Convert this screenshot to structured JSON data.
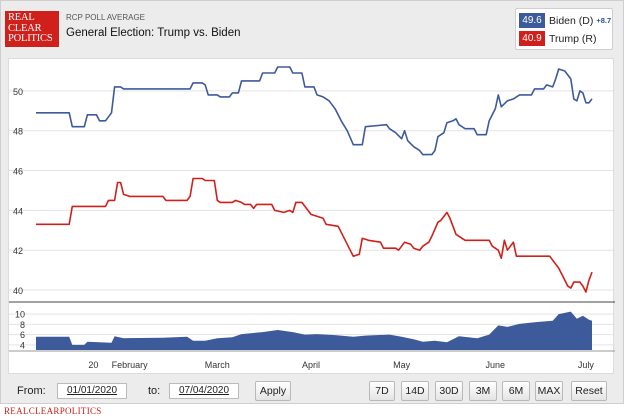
{
  "brand": {
    "logo_lines": [
      "REAL",
      "CLEAR",
      "POLITICS"
    ],
    "footer": "REALCLEARPOLITICS"
  },
  "header": {
    "kicker": "RCP POLL AVERAGE",
    "title": "General Election: Trump vs. Biden"
  },
  "legend": {
    "items": [
      {
        "value": "49.6",
        "label": "Biden (D)",
        "spread": "+8.7",
        "color": "#3d5a9b"
      },
      {
        "value": "40.9",
        "label": "Trump (R)",
        "color": "#d0201b"
      }
    ]
  },
  "chart_data": [
    {
      "type": "line",
      "title": "",
      "xlabel": "",
      "ylabel": "",
      "x_domain": [
        "2020-01-01",
        "2020-07-04"
      ],
      "ylim": [
        39.5,
        51.3
      ],
      "yticks": [
        40,
        42,
        44,
        46,
        48,
        50
      ],
      "xticks": [
        {
          "date": "2020-01-20",
          "label": "20"
        },
        {
          "date": "2020-02-01",
          "label": "February"
        },
        {
          "date": "2020-03-01",
          "label": "March"
        },
        {
          "date": "2020-04-01",
          "label": "April"
        },
        {
          "date": "2020-05-01",
          "label": "May"
        },
        {
          "date": "2020-06-01",
          "label": "June"
        },
        {
          "date": "2020-07-01",
          "label": "July"
        }
      ],
      "grid": "horizontal",
      "series": [
        {
          "name": "Biden (D)",
          "color": "#3d5a9b",
          "points": [
            [
              "2020-01-01",
              48.9
            ],
            [
              "2020-01-12",
              48.9
            ],
            [
              "2020-01-13",
              48.2
            ],
            [
              "2020-01-17",
              48.2
            ],
            [
              "2020-01-18",
              48.8
            ],
            [
              "2020-01-21",
              48.8
            ],
            [
              "2020-01-22",
              48.5
            ],
            [
              "2020-01-24",
              48.5
            ],
            [
              "2020-01-26",
              48.9
            ],
            [
              "2020-01-27",
              50.2
            ],
            [
              "2020-01-29",
              50.2
            ],
            [
              "2020-01-30",
              50.1
            ],
            [
              "2020-02-21",
              50.1
            ],
            [
              "2020-02-22",
              50.4
            ],
            [
              "2020-02-25",
              50.4
            ],
            [
              "2020-02-26",
              50.3
            ],
            [
              "2020-02-27",
              49.8
            ],
            [
              "2020-03-01",
              49.8
            ],
            [
              "2020-03-02",
              49.7
            ],
            [
              "2020-03-05",
              49.7
            ],
            [
              "2020-03-06",
              49.9
            ],
            [
              "2020-03-08",
              49.9
            ],
            [
              "2020-03-09",
              50.5
            ],
            [
              "2020-03-15",
              50.5
            ],
            [
              "2020-03-16",
              50.9
            ],
            [
              "2020-03-20",
              50.9
            ],
            [
              "2020-03-21",
              51.2
            ],
            [
              "2020-03-25",
              51.2
            ],
            [
              "2020-03-26",
              50.9
            ],
            [
              "2020-03-29",
              50.9
            ],
            [
              "2020-03-30",
              50.2
            ],
            [
              "2020-04-02",
              50.2
            ],
            [
              "2020-04-03",
              49.8
            ],
            [
              "2020-04-05",
              49.7
            ],
            [
              "2020-04-07",
              49.5
            ],
            [
              "2020-04-09",
              49.1
            ],
            [
              "2020-04-11",
              48.5
            ],
            [
              "2020-04-13",
              48.0
            ],
            [
              "2020-04-15",
              47.3
            ],
            [
              "2020-04-18",
              47.3
            ],
            [
              "2020-04-19",
              48.2
            ],
            [
              "2020-04-26",
              48.3
            ],
            [
              "2020-04-27",
              48.1
            ],
            [
              "2020-04-29",
              47.9
            ],
            [
              "2020-05-01",
              47.6
            ],
            [
              "2020-05-02",
              48.0
            ],
            [
              "2020-05-03",
              47.5
            ],
            [
              "2020-05-05",
              47.2
            ],
            [
              "2020-05-07",
              47.0
            ],
            [
              "2020-05-08",
              46.8
            ],
            [
              "2020-05-11",
              46.8
            ],
            [
              "2020-05-12",
              47.0
            ],
            [
              "2020-05-13",
              47.7
            ],
            [
              "2020-05-15",
              47.9
            ],
            [
              "2020-05-16",
              48.4
            ],
            [
              "2020-05-18",
              48.5
            ],
            [
              "2020-05-19",
              48.6
            ],
            [
              "2020-05-20",
              48.3
            ],
            [
              "2020-05-22",
              48.1
            ],
            [
              "2020-05-25",
              48.1
            ],
            [
              "2020-05-26",
              47.8
            ],
            [
              "2020-05-29",
              47.8
            ],
            [
              "2020-05-30",
              48.5
            ],
            [
              "2020-06-01",
              49.1
            ],
            [
              "2020-06-02",
              49.8
            ],
            [
              "2020-06-03",
              49.2
            ],
            [
              "2020-06-05",
              49.5
            ],
            [
              "2020-06-07",
              49.6
            ],
            [
              "2020-06-09",
              49.8
            ],
            [
              "2020-06-13",
              49.8
            ],
            [
              "2020-06-14",
              50.1
            ],
            [
              "2020-06-17",
              50.1
            ],
            [
              "2020-06-18",
              50.3
            ],
            [
              "2020-06-20",
              50.2
            ],
            [
              "2020-06-21",
              50.6
            ],
            [
              "2020-06-22",
              51.1
            ],
            [
              "2020-06-24",
              51.0
            ],
            [
              "2020-06-26",
              50.6
            ],
            [
              "2020-06-27",
              49.6
            ],
            [
              "2020-06-28",
              49.5
            ],
            [
              "2020-06-29",
              50.0
            ],
            [
              "2020-06-30",
              49.9
            ],
            [
              "2020-07-01",
              49.4
            ],
            [
              "2020-07-02",
              49.4
            ],
            [
              "2020-07-03",
              49.6
            ]
          ]
        },
        {
          "name": "Trump (R)",
          "color": "#d0201b",
          "points": [
            [
              "2020-01-01",
              43.3
            ],
            [
              "2020-01-12",
              43.3
            ],
            [
              "2020-01-13",
              44.2
            ],
            [
              "2020-01-24",
              44.2
            ],
            [
              "2020-01-25",
              44.5
            ],
            [
              "2020-01-27",
              44.5
            ],
            [
              "2020-01-28",
              45.4
            ],
            [
              "2020-01-29",
              45.4
            ],
            [
              "2020-01-30",
              44.8
            ],
            [
              "2020-02-01",
              44.7
            ],
            [
              "2020-02-12",
              44.7
            ],
            [
              "2020-02-13",
              44.5
            ],
            [
              "2020-02-20",
              44.5
            ],
            [
              "2020-02-21",
              44.7
            ],
            [
              "2020-02-22",
              45.6
            ],
            [
              "2020-02-25",
              45.6
            ],
            [
              "2020-02-26",
              45.5
            ],
            [
              "2020-02-29",
              45.5
            ],
            [
              "2020-03-01",
              44.5
            ],
            [
              "2020-03-02",
              44.4
            ],
            [
              "2020-03-06",
              44.4
            ],
            [
              "2020-03-07",
              44.5
            ],
            [
              "2020-03-09",
              44.4
            ],
            [
              "2020-03-10",
              44.3
            ],
            [
              "2020-03-12",
              44.3
            ],
            [
              "2020-03-13",
              44.1
            ],
            [
              "2020-03-14",
              44.3
            ],
            [
              "2020-03-19",
              44.3
            ],
            [
              "2020-03-20",
              44.0
            ],
            [
              "2020-03-23",
              43.9
            ],
            [
              "2020-03-25",
              44.0
            ],
            [
              "2020-03-26",
              43.9
            ],
            [
              "2020-03-27",
              44.4
            ],
            [
              "2020-03-29",
              44.4
            ],
            [
              "2020-03-30",
              44.2
            ],
            [
              "2020-04-01",
              43.8
            ],
            [
              "2020-04-05",
              43.6
            ],
            [
              "2020-04-06",
              43.3
            ],
            [
              "2020-04-10",
              43.2
            ],
            [
              "2020-04-11",
              42.9
            ],
            [
              "2020-04-13",
              42.3
            ],
            [
              "2020-04-14",
              42.0
            ],
            [
              "2020-04-15",
              41.7
            ],
            [
              "2020-04-17",
              41.8
            ],
            [
              "2020-04-18",
              42.6
            ],
            [
              "2020-04-20",
              42.5
            ],
            [
              "2020-04-24",
              42.4
            ],
            [
              "2020-04-25",
              42.1
            ],
            [
              "2020-04-29",
              42.1
            ],
            [
              "2020-04-30",
              42.0
            ],
            [
              "2020-05-02",
              42.4
            ],
            [
              "2020-05-04",
              42.3
            ],
            [
              "2020-05-05",
              42.1
            ],
            [
              "2020-05-07",
              42.0
            ],
            [
              "2020-05-08",
              42.2
            ],
            [
              "2020-05-10",
              42.4
            ],
            [
              "2020-05-11",
              42.7
            ],
            [
              "2020-05-13",
              43.4
            ],
            [
              "2020-05-14",
              43.5
            ],
            [
              "2020-05-15",
              43.7
            ],
            [
              "2020-05-16",
              43.9
            ],
            [
              "2020-05-17",
              43.6
            ],
            [
              "2020-05-19",
              42.8
            ],
            [
              "2020-05-21",
              42.6
            ],
            [
              "2020-05-22",
              42.5
            ],
            [
              "2020-05-30",
              42.5
            ],
            [
              "2020-05-31",
              42.2
            ],
            [
              "2020-06-02",
              42.0
            ],
            [
              "2020-06-03",
              41.6
            ],
            [
              "2020-06-04",
              42.5
            ],
            [
              "2020-06-05",
              42.0
            ],
            [
              "2020-06-07",
              42.4
            ],
            [
              "2020-06-08",
              41.7
            ],
            [
              "2020-06-19",
              41.7
            ],
            [
              "2020-06-20",
              41.5
            ],
            [
              "2020-06-22",
              41.1
            ],
            [
              "2020-06-24",
              40.5
            ],
            [
              "2020-06-25",
              40.2
            ],
            [
              "2020-06-26",
              40.1
            ],
            [
              "2020-06-27",
              40.4
            ],
            [
              "2020-06-29",
              40.4
            ],
            [
              "2020-06-30",
              40.2
            ],
            [
              "2020-07-01",
              39.9
            ],
            [
              "2020-07-02",
              40.5
            ],
            [
              "2020-07-03",
              40.9
            ]
          ]
        }
      ]
    },
    {
      "type": "area",
      "title": "",
      "ylim": [
        3,
        11
      ],
      "yticks": [
        4,
        6,
        8,
        10
      ],
      "series": [
        {
          "name": "Spread",
          "color": "#3d5a9b",
          "points": [
            [
              "2020-01-01",
              5.6
            ],
            [
              "2020-01-12",
              5.6
            ],
            [
              "2020-01-13",
              4.0
            ],
            [
              "2020-01-17",
              4.0
            ],
            [
              "2020-01-18",
              4.6
            ],
            [
              "2020-01-26",
              4.4
            ],
            [
              "2020-01-27",
              5.7
            ],
            [
              "2020-01-30",
              5.3
            ],
            [
              "2020-02-12",
              5.4
            ],
            [
              "2020-02-20",
              5.6
            ],
            [
              "2020-02-22",
              4.8
            ],
            [
              "2020-02-26",
              4.8
            ],
            [
              "2020-03-01",
              5.3
            ],
            [
              "2020-03-06",
              5.5
            ],
            [
              "2020-03-09",
              6.1
            ],
            [
              "2020-03-16",
              6.5
            ],
            [
              "2020-03-21",
              6.9
            ],
            [
              "2020-03-26",
              6.5
            ],
            [
              "2020-03-30",
              6.0
            ],
            [
              "2020-04-03",
              6.1
            ],
            [
              "2020-04-09",
              5.9
            ],
            [
              "2020-04-15",
              5.6
            ],
            [
              "2020-04-19",
              5.8
            ],
            [
              "2020-04-27",
              6.0
            ],
            [
              "2020-05-01",
              5.6
            ],
            [
              "2020-05-05",
              5.1
            ],
            [
              "2020-05-08",
              4.6
            ],
            [
              "2020-05-12",
              4.8
            ],
            [
              "2020-05-16",
              4.5
            ],
            [
              "2020-05-20",
              5.7
            ],
            [
              "2020-05-26",
              5.3
            ],
            [
              "2020-05-30",
              6.0
            ],
            [
              "2020-06-02",
              7.8
            ],
            [
              "2020-06-05",
              7.5
            ],
            [
              "2020-06-09",
              8.1
            ],
            [
              "2020-06-14",
              8.4
            ],
            [
              "2020-06-20",
              8.7
            ],
            [
              "2020-06-22",
              10.0
            ],
            [
              "2020-06-26",
              10.5
            ],
            [
              "2020-06-28",
              9.1
            ],
            [
              "2020-06-30",
              9.7
            ],
            [
              "2020-07-02",
              8.9
            ],
            [
              "2020-07-03",
              8.7
            ]
          ]
        }
      ]
    }
  ],
  "controls": {
    "from_label": "From:",
    "from_value": "01/01/2020",
    "to_label": "to:",
    "to_value": "07/04/2020",
    "apply_label": "Apply",
    "ranges": [
      "7D",
      "14D",
      "30D",
      "3M",
      "6M",
      "MAX",
      "Reset"
    ]
  }
}
